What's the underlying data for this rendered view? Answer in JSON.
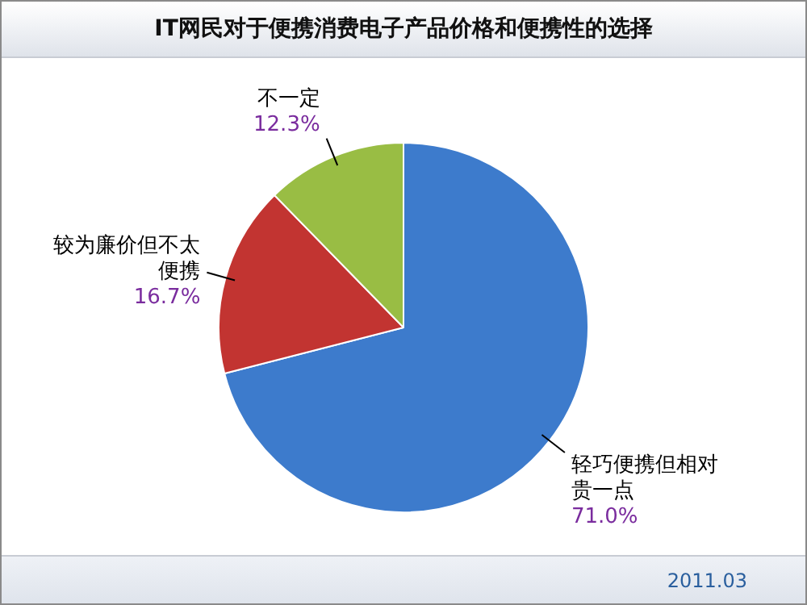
{
  "chart_data": {
    "type": "pie",
    "title": "IT网民对于便携消费电子产品价格和便携性的选择",
    "categories": [
      "轻巧便携但相对贵一点",
      "较为廉价但不太便携",
      "不一定"
    ],
    "values": [
      71.0,
      16.7,
      12.3
    ],
    "value_labels": [
      "71.0%",
      "16.7%",
      "12.3%"
    ],
    "colors": [
      "#3d7bcc",
      "#c23431",
      "#99bd44"
    ],
    "legend": false,
    "annotations": [
      "2011.03"
    ]
  }
}
